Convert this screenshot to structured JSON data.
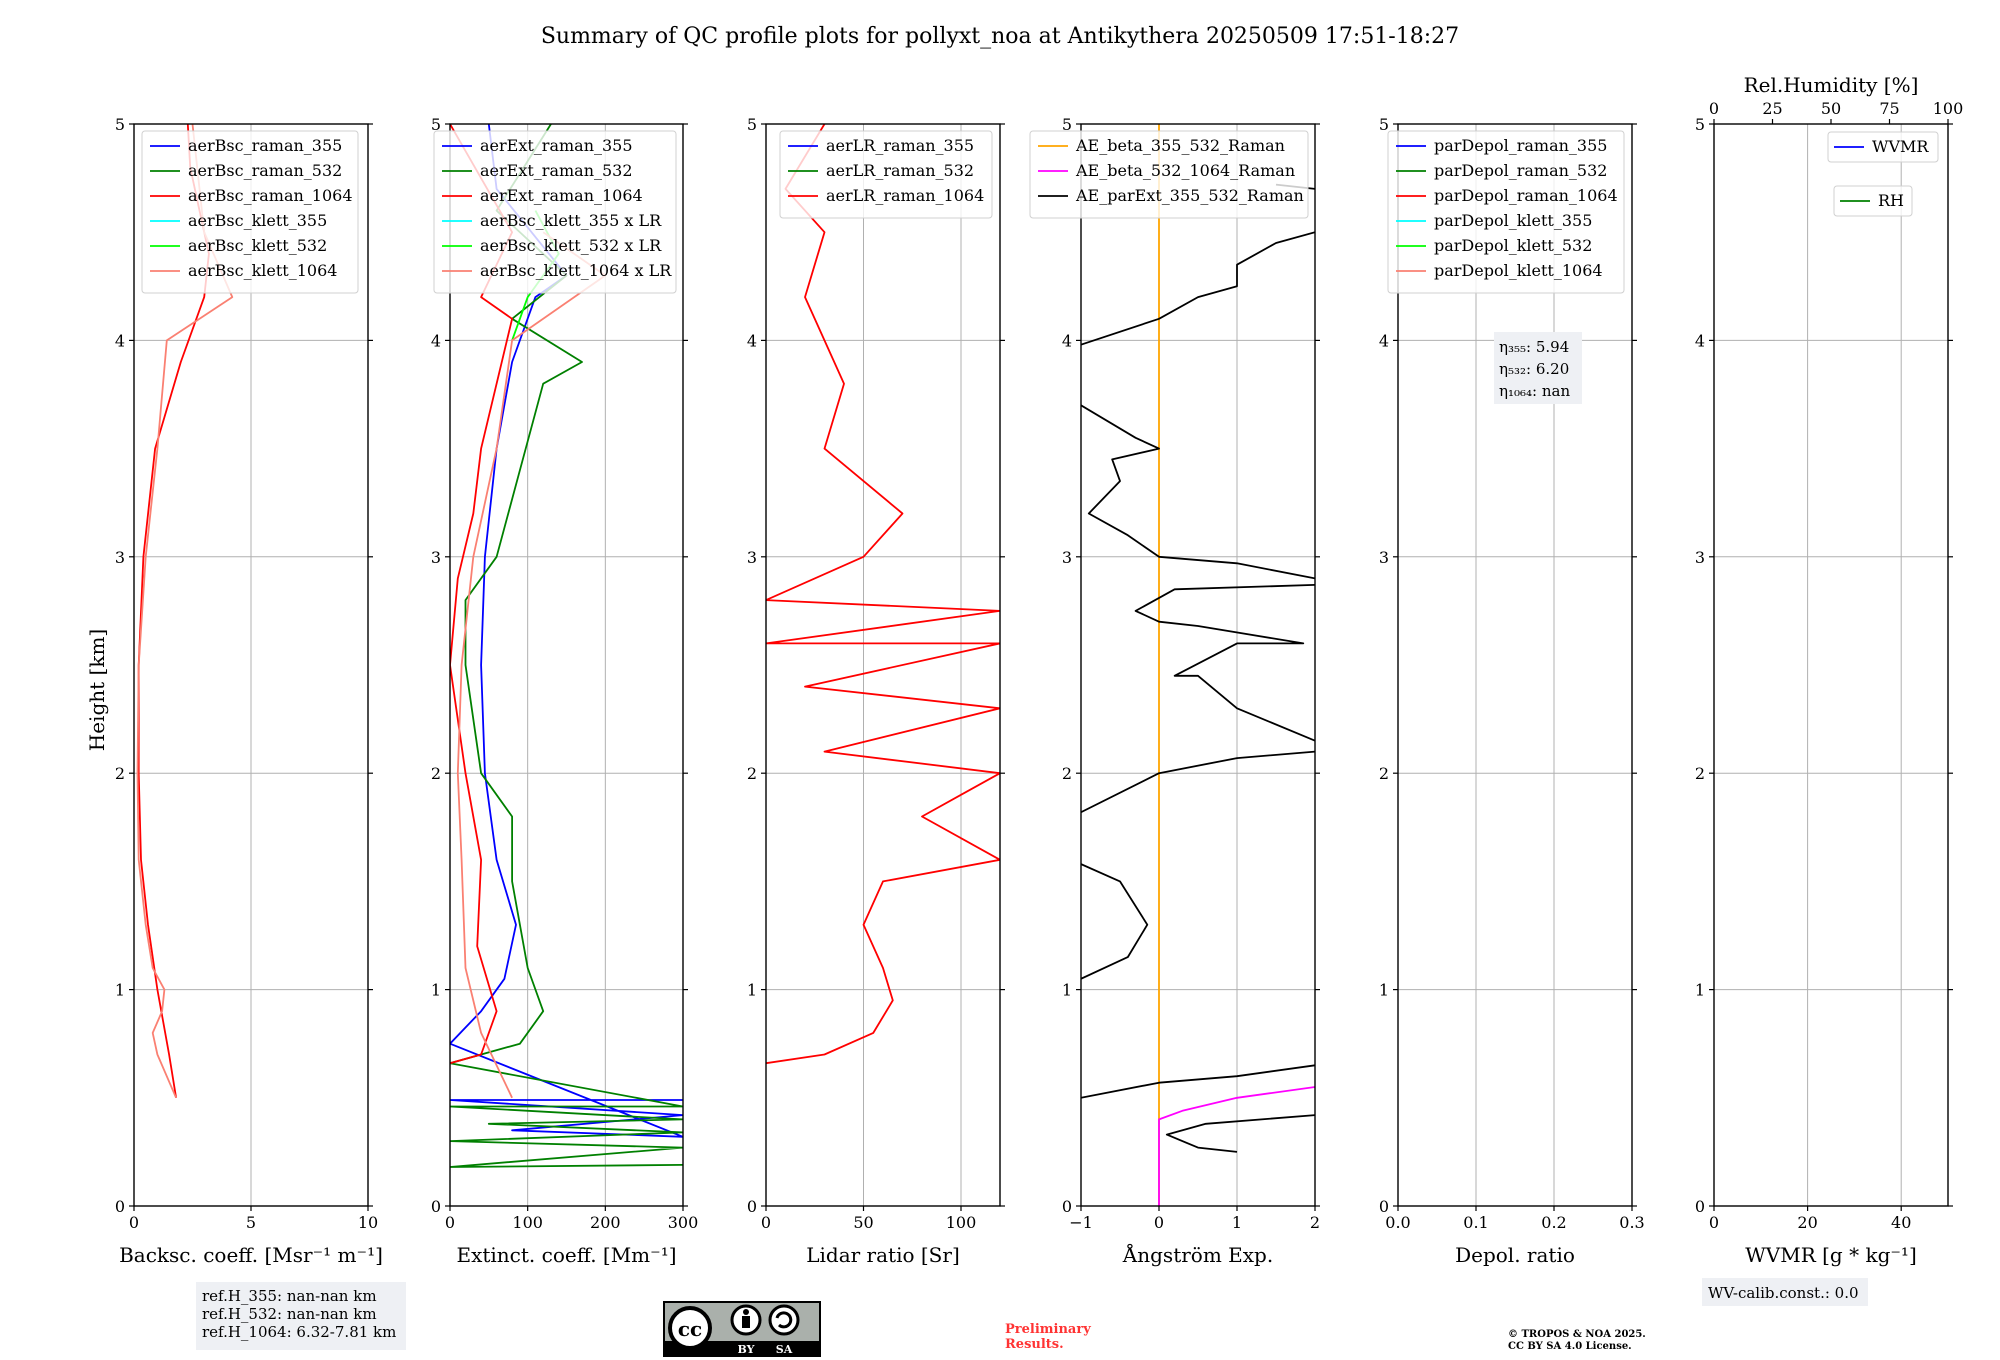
{
  "title": "Summary of QC profile plots for pollyxt_noa at Antikythera 20250509 17:51-18:27",
  "ylabel": "Height [km]",
  "colors": {
    "blue": "#0000ff",
    "green": "#008000",
    "red": "#ff0000",
    "cyan": "#00ffff",
    "lime": "#00ff00",
    "salmon": "#fa8072",
    "orange": "#ffa500",
    "magenta": "#ff00ff",
    "black": "#000000"
  },
  "chart_data": [
    {
      "type": "line",
      "id": "bsc",
      "xlabel": "Backsc. coeff. [Msr⁻¹ m⁻¹]",
      "xlim": [
        0,
        10
      ],
      "xticks": [
        0,
        5,
        10
      ],
      "ylim": [
        0,
        5
      ],
      "yticks": [
        0,
        1,
        2,
        3,
        4,
        5
      ],
      "grid": true,
      "legend_position": "top-right",
      "series": [
        {
          "name": "aerBsc_raman_355",
          "color": "#0000ff",
          "points": []
        },
        {
          "name": "aerBsc_raman_532",
          "color": "#008000",
          "points": []
        },
        {
          "name": "aerBsc_raman_1064",
          "color": "#ff0000",
          "points": [
            [
              1.8,
              0.5
            ],
            [
              1.5,
              0.7
            ],
            [
              1.0,
              1.0
            ],
            [
              0.6,
              1.3
            ],
            [
              0.3,
              1.6
            ],
            [
              0.2,
              2.0
            ],
            [
              0.2,
              2.5
            ],
            [
              0.4,
              3.0
            ],
            [
              0.9,
              3.5
            ],
            [
              2.0,
              3.9
            ],
            [
              3.0,
              4.2
            ],
            [
              3.2,
              4.4
            ],
            [
              2.8,
              4.6
            ],
            [
              2.4,
              4.8
            ],
            [
              2.3,
              5.0
            ]
          ]
        },
        {
          "name": "aerBsc_klett_355",
          "color": "#00ffff",
          "points": []
        },
        {
          "name": "aerBsc_klett_532",
          "color": "#00ff00",
          "points": []
        },
        {
          "name": "aerBsc_klett_1064",
          "color": "#fa8072",
          "points": [
            [
              1.8,
              0.5
            ],
            [
              1.0,
              0.7
            ],
            [
              0.8,
              0.8
            ],
            [
              1.2,
              0.9
            ],
            [
              1.3,
              1.0
            ],
            [
              0.8,
              1.1
            ],
            [
              0.5,
              1.3
            ],
            [
              0.2,
              1.6
            ],
            [
              0.15,
              2.0
            ],
            [
              0.2,
              2.5
            ],
            [
              0.5,
              3.0
            ],
            [
              1.0,
              3.5
            ],
            [
              1.4,
              4.0
            ],
            [
              4.2,
              4.2
            ],
            [
              3.0,
              4.5
            ],
            [
              2.5,
              5.0
            ]
          ]
        }
      ]
    },
    {
      "type": "line",
      "id": "ext",
      "xlabel": "Extinct. coeff. [Mm⁻¹]",
      "xlim": [
        0,
        300
      ],
      "xticks": [
        0,
        100,
        200,
        300
      ],
      "ylim": [
        0,
        5
      ],
      "yticks": [
        0,
        1,
        2,
        3,
        4,
        5
      ],
      "grid": true,
      "legend_position": "top-right",
      "series": [
        {
          "name": "aerExt_raman_355",
          "color": "#0000ff",
          "points": [
            [
              300,
              0.49
            ],
            [
              0,
              0.49
            ],
            [
              300,
              0.42
            ],
            [
              80,
              0.35
            ],
            [
              300,
              0.32
            ],
            [
              0,
              0.75
            ],
            [
              40,
              0.9
            ],
            [
              70,
              1.05
            ],
            [
              85,
              1.3
            ],
            [
              60,
              1.6
            ],
            [
              45,
              2.0
            ],
            [
              40,
              2.5
            ],
            [
              45,
              3.0
            ],
            [
              60,
              3.5
            ],
            [
              80,
              3.9
            ],
            [
              110,
              4.2
            ],
            [
              150,
              4.3
            ],
            [
              60,
              4.7
            ],
            [
              50,
              5.0
            ]
          ]
        },
        {
          "name": "aerExt_raman_532",
          "color": "#008000",
          "points": [
            [
              300,
              0.19
            ],
            [
              0,
              0.18
            ],
            [
              300,
              0.27
            ],
            [
              0,
              0.3
            ],
            [
              300,
              0.34
            ],
            [
              50,
              0.38
            ],
            [
              300,
              0.4
            ],
            [
              0,
              0.46
            ],
            [
              300,
              0.46
            ],
            [
              0,
              0.66
            ],
            [
              90,
              0.75
            ],
            [
              120,
              0.9
            ],
            [
              100,
              1.1
            ],
            [
              80,
              1.5
            ],
            [
              80,
              1.8
            ],
            [
              40,
              2.0
            ],
            [
              20,
              2.5
            ],
            [
              20,
              2.8
            ],
            [
              60,
              3.0
            ],
            [
              90,
              3.4
            ],
            [
              120,
              3.8
            ],
            [
              170,
              3.9
            ],
            [
              80,
              4.1
            ],
            [
              150,
              4.3
            ],
            [
              60,
              4.6
            ],
            [
              130,
              5.0
            ]
          ]
        },
        {
          "name": "aerExt_raman_1064",
          "color": "#ff0000",
          "points": [
            [
              0,
              0.66
            ],
            [
              40,
              0.7
            ],
            [
              60,
              0.9
            ],
            [
              35,
              1.2
            ],
            [
              40,
              1.6
            ],
            [
              20,
              2.0
            ],
            [
              0,
              2.5
            ],
            [
              10,
              2.9
            ],
            [
              30,
              3.2
            ],
            [
              40,
              3.5
            ],
            [
              60,
              3.8
            ],
            [
              80,
              4.1
            ],
            [
              40,
              4.2
            ],
            [
              80,
              4.5
            ],
            [
              0,
              5.0
            ]
          ]
        },
        {
          "name": "aerBsc_klett_355 x LR",
          "color": "#00ffff",
          "points": []
        },
        {
          "name": "aerBsc_klett_532 x LR",
          "color": "#00ff00",
          "points": [
            [
              80,
              4.0
            ],
            [
              100,
              4.2
            ],
            [
              140,
              4.4
            ],
            [
              110,
              4.6
            ]
          ]
        },
        {
          "name": "aerBsc_klett_1064 x LR",
          "color": "#fa8072",
          "points": [
            [
              80,
              0.5
            ],
            [
              40,
              0.8
            ],
            [
              20,
              1.1
            ],
            [
              15,
              1.6
            ],
            [
              10,
              2.0
            ],
            [
              15,
              2.5
            ],
            [
              30,
              3.0
            ],
            [
              60,
              3.5
            ],
            [
              80,
              4.0
            ],
            [
              200,
              4.3
            ],
            [
              120,
              4.5
            ]
          ]
        }
      ]
    },
    {
      "type": "line",
      "id": "lr",
      "xlabel": "Lidar ratio [Sr]",
      "xlim": [
        0,
        120
      ],
      "xticks": [
        0,
        50,
        100
      ],
      "ylim": [
        0,
        5
      ],
      "yticks": [
        0,
        1,
        2,
        3,
        4,
        5
      ],
      "grid": true,
      "legend_position": "top-right",
      "series": [
        {
          "name": "aerLR_raman_355",
          "color": "#0000ff",
          "points": []
        },
        {
          "name": "aerLR_raman_532",
          "color": "#008000",
          "points": []
        },
        {
          "name": "aerLR_raman_1064",
          "color": "#ff0000",
          "points": [
            [
              0,
              0.66
            ],
            [
              30,
              0.7
            ],
            [
              55,
              0.8
            ],
            [
              65,
              0.95
            ],
            [
              60,
              1.1
            ],
            [
              50,
              1.3
            ],
            [
              60,
              1.5
            ],
            [
              120,
              1.6
            ],
            [
              80,
              1.8
            ],
            [
              100,
              1.9
            ],
            [
              120,
              2.0
            ],
            [
              30,
              2.1
            ],
            [
              120,
              2.3
            ],
            [
              20,
              2.4
            ],
            [
              120,
              2.6
            ],
            [
              0,
              2.6
            ],
            [
              120,
              2.75
            ],
            [
              0,
              2.8
            ],
            [
              50,
              3.0
            ],
            [
              70,
              3.2
            ],
            [
              30,
              3.5
            ],
            [
              40,
              3.8
            ],
            [
              20,
              4.2
            ],
            [
              30,
              4.5
            ],
            [
              10,
              4.7
            ],
            [
              30,
              5.0
            ]
          ]
        }
      ]
    },
    {
      "type": "line",
      "id": "ae",
      "xlabel": "Ångström Exp.",
      "xlim": [
        -1,
        2
      ],
      "xticks": [
        -1,
        0,
        1,
        2
      ],
      "ylim": [
        0,
        5
      ],
      "yticks": [
        0,
        1,
        2,
        3,
        4,
        5
      ],
      "grid": true,
      "legend_position": "top-left",
      "series": [
        {
          "name": "AE_beta_355_532_Raman",
          "color": "#ffa500",
          "points": [
            [
              0,
              0
            ],
            [
              0,
              5
            ]
          ]
        },
        {
          "name": "AE_beta_532_1064_Raman",
          "color": "#ff00ff",
          "points": [
            [
              0,
              0
            ],
            [
              0,
              0.4
            ],
            [
              0.3,
              0.44
            ],
            [
              1.0,
              0.5
            ],
            [
              2.0,
              0.55
            ]
          ]
        },
        {
          "name": "AE_parExt_355_532_Raman",
          "color": "#000000",
          "points": [
            [
              1.0,
              0.25
            ],
            [
              0.5,
              0.27
            ],
            [
              0.1,
              0.33
            ],
            [
              0.6,
              0.38
            ],
            [
              2.0,
              0.42
            ],
            [
              null,
              null
            ],
            [
              -1,
              0.5
            ],
            [
              0,
              0.57
            ],
            [
              1.0,
              0.6
            ],
            [
              2.0,
              0.65
            ],
            [
              null,
              null
            ],
            [
              -1,
              1.05
            ],
            [
              -0.4,
              1.15
            ],
            [
              -0.15,
              1.3
            ],
            [
              -0.5,
              1.5
            ],
            [
              -1,
              1.58
            ],
            [
              null,
              null
            ],
            [
              -1,
              1.82
            ],
            [
              0,
              2.0
            ],
            [
              1.0,
              2.07
            ],
            [
              2.0,
              2.1
            ],
            [
              null,
              null
            ],
            [
              2.0,
              2.15
            ],
            [
              1.0,
              2.3
            ],
            [
              0.5,
              2.45
            ],
            [
              0.2,
              2.45
            ],
            [
              1.0,
              2.6
            ],
            [
              1.85,
              2.6
            ],
            [
              0.5,
              2.68
            ],
            [
              0,
              2.7
            ],
            [
              -0.3,
              2.75
            ],
            [
              0.2,
              2.85
            ],
            [
              2.0,
              2.87
            ],
            [
              null,
              null
            ],
            [
              2.0,
              2.9
            ],
            [
              1.0,
              2.97
            ],
            [
              0,
              3.0
            ],
            [
              -0.4,
              3.1
            ],
            [
              -0.9,
              3.2
            ],
            [
              -0.5,
              3.35
            ],
            [
              -0.6,
              3.45
            ],
            [
              0,
              3.5
            ],
            [
              -0.3,
              3.55
            ],
            [
              -1,
              3.7
            ],
            [
              null,
              null
            ],
            [
              -1,
              3.98
            ],
            [
              0,
              4.1
            ],
            [
              0.5,
              4.2
            ],
            [
              1.0,
              4.25
            ],
            [
              1.0,
              4.35
            ],
            [
              1.5,
              4.45
            ],
            [
              2.0,
              4.5
            ],
            [
              null,
              null
            ],
            [
              2.0,
              4.7
            ],
            [
              1.5,
              4.72
            ]
          ]
        }
      ]
    },
    {
      "type": "line",
      "id": "depol",
      "xlabel": "Depol. ratio",
      "xlim": [
        0,
        0.3
      ],
      "xticks": [
        0.0,
        0.1,
        0.2,
        0.3
      ],
      "ylim": [
        0,
        5
      ],
      "yticks": [
        0,
        1,
        2,
        3,
        4,
        5
      ],
      "grid": true,
      "legend_position": "top-right",
      "series": [
        {
          "name": "parDepol_raman_355",
          "color": "#0000ff",
          "points": []
        },
        {
          "name": "parDepol_raman_532",
          "color": "#008000",
          "points": []
        },
        {
          "name": "parDepol_raman_1064",
          "color": "#ff0000",
          "points": []
        },
        {
          "name": "parDepol_klett_355",
          "color": "#00ffff",
          "points": []
        },
        {
          "name": "parDepol_klett_532",
          "color": "#00ff00",
          "points": []
        },
        {
          "name": "parDepol_klett_1064",
          "color": "#fa8072",
          "points": []
        }
      ]
    },
    {
      "type": "line",
      "id": "wv",
      "xlabel": "WVMR [g * kg⁻¹]",
      "xlim": [
        0,
        50
      ],
      "xticks": [
        0,
        20,
        40
      ],
      "x2label": "Rel.Humidity [%]",
      "x2lim": [
        0,
        100
      ],
      "x2ticks": [
        0,
        25,
        50,
        75,
        100
      ],
      "ylim": [
        0,
        5
      ],
      "yticks": [
        0,
        1,
        2,
        3,
        4,
        5
      ],
      "grid": true,
      "legend_position": "top-right",
      "series": [
        {
          "name": "WVMR",
          "color": "#0000ff",
          "points": []
        },
        {
          "name": "RH",
          "color": "#008000",
          "points": []
        }
      ]
    }
  ],
  "eta": {
    "l355": "η₃₅₅: 5.94",
    "l532": "η₅₃₂: 6.20",
    "l1064": "η₁₀₆₄: nan"
  },
  "refH": {
    "l355": "ref.H_355: nan-nan km",
    "l532": "ref.H_532: nan-nan km",
    "l1064": "ref.H_1064: 6.32-7.81 km"
  },
  "wv_calib": "WV-calib.const.: 0.0",
  "license_badge": {
    "cc": "cc",
    "by": "BY",
    "sa": "SA"
  },
  "preliminary": {
    "line1": "Preliminary",
    "line2": "Results."
  },
  "copyright": {
    "line1": "© TROPOS & NOA 2025.",
    "line2": "CC BY SA 4.0 License."
  }
}
